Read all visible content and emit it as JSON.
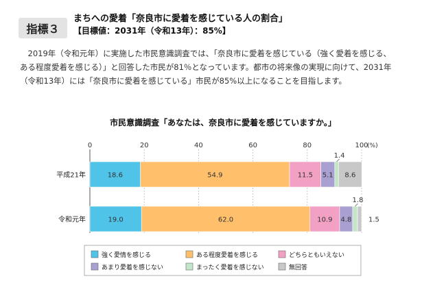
{
  "header": {
    "badge": "指標３",
    "title": "まちへの愛着「奈良市に愛着を感じている人の割合」",
    "target": "【目標値：2031年（令和13年）：85%】"
  },
  "description": {
    "lines": [
      "2019年（令和元年）に実施した市民意識調査では、「奈良市に愛着を感じている（強く愛着を感じる、",
      "ある程度愛着を感じる）」と回答した市民が81％となっています。都市の将来像の実現に向けて、2031年",
      "（令和13年）には「奈良市に愛着を感じている」市民が85%以上になることを目指します。"
    ]
  },
  "chart_data": {
    "type": "bar",
    "stacked": true,
    "orientation": "horizontal",
    "title": "市民意識調査「あなたは、奈良市に愛着を感じていますか。」",
    "xlim": [
      0,
      100
    ],
    "ticks": [
      "0",
      "20",
      "40",
      "60",
      "80",
      "100"
    ],
    "unit_label": "(%)",
    "grid": true,
    "legend_position": "bottom",
    "categories": [
      "平成21年",
      "令和元年"
    ],
    "series": [
      {
        "name": "強く愛情を感じる",
        "color": "#4fc3e8",
        "values": [
          18.6,
          19.0
        ],
        "labels": [
          "18.6",
          "19.0"
        ]
      },
      {
        "name": "ある程度愛着を感じる",
        "color": "#ffbf6b",
        "values": [
          54.9,
          62.0
        ],
        "labels": [
          "54.9",
          "62.0"
        ]
      },
      {
        "name": "どちらともいえない",
        "color": "#f2a0c4",
        "values": [
          11.5,
          10.9
        ],
        "labels": [
          "11.5",
          "10.9"
        ]
      },
      {
        "name": "あまり愛着を感じない",
        "color": "#a99fd1",
        "values": [
          5.1,
          4.8
        ],
        "labels": [
          "5.1",
          "4.8"
        ]
      },
      {
        "name": "まったく愛着を感じない",
        "color": "#c4e6c8",
        "values": [
          1.4,
          1.8
        ],
        "labels": [
          "1.4",
          "1.8"
        ]
      },
      {
        "name": "無回答",
        "color": "#c8c8c8",
        "values": [
          8.6,
          1.5
        ],
        "labels": [
          "8.6",
          "1.5"
        ]
      }
    ]
  }
}
